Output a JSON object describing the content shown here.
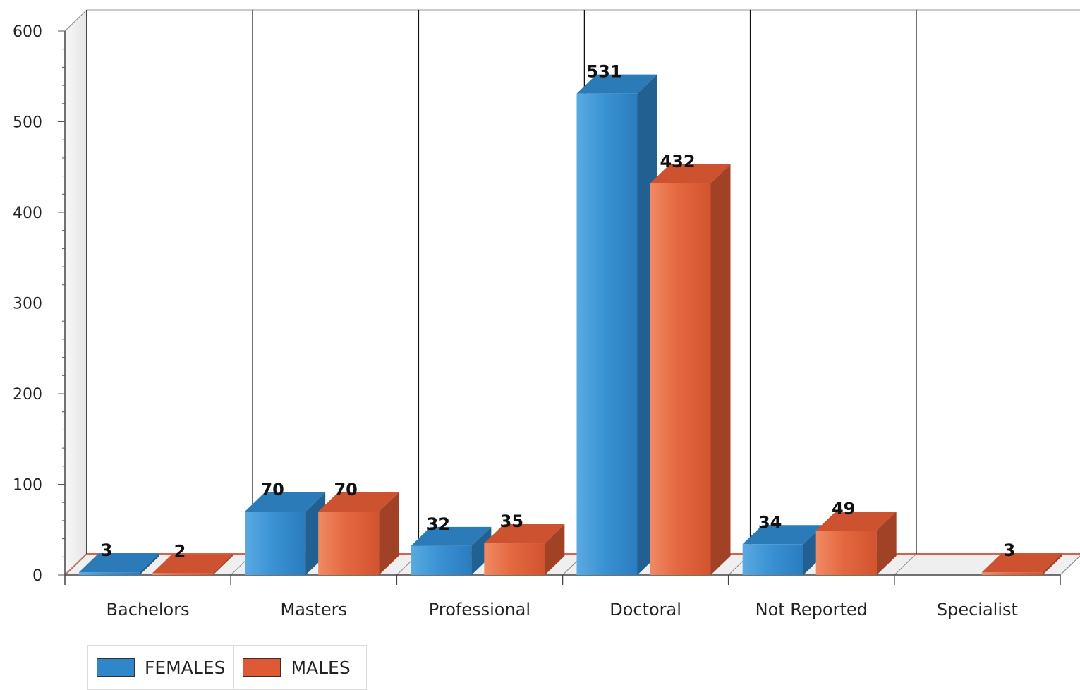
{
  "chart_data": {
    "type": "bar",
    "categories": [
      "Bachelors",
      "Masters",
      "Professional",
      "Doctoral",
      "Not Reported",
      "Specialist"
    ],
    "series": [
      {
        "name": "FEMALES",
        "values": [
          3,
          70,
          32,
          531,
          34,
          null
        ],
        "color": "#2f86c9"
      },
      {
        "name": "MALES",
        "values": [
          2,
          70,
          35,
          432,
          49,
          3
        ],
        "color": "#df5a34"
      }
    ],
    "data_labels": [
      [
        "3",
        "70",
        "32",
        "531",
        "34",
        ""
      ],
      [
        "2",
        "70",
        "35",
        "432",
        "49",
        "3"
      ]
    ],
    "ylim": [
      0,
      600
    ],
    "yticks": [
      "0",
      "100",
      "200",
      "300",
      "400",
      "500",
      "600"
    ],
    "xlabel": "",
    "ylabel": "",
    "title": "",
    "legend_position": "bottom-left",
    "style": "3d-bar"
  }
}
